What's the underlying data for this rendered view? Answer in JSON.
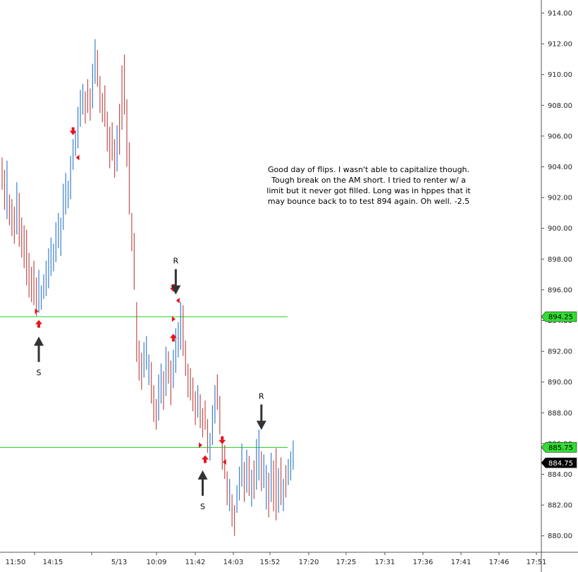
{
  "chart_data": {
    "type": "ohlc",
    "ylim": [
      879,
      915
    ],
    "y_ticks": [
      "914.00",
      "912.00",
      "910.00",
      "908.00",
      "906.00",
      "904.00",
      "902.00",
      "900.00",
      "898.00",
      "896.00",
      "894.00",
      "892.00",
      "890.00",
      "888.00",
      "886.00",
      "884.00",
      "882.00",
      "880.00"
    ],
    "x_ticks": [
      "11:50",
      "14:15",
      "5/13",
      "10:09",
      "11:42",
      "14:03",
      "15:52",
      "17:20",
      "17:25",
      "17:31",
      "17:36",
      "17:41",
      "17:46",
      "17:51"
    ],
    "horizontal_lines": [
      {
        "value": 894.25,
        "label": "894.25",
        "color": "#22cc22"
      },
      {
        "value": 885.75,
        "label": "885.75",
        "color": "#22cc22"
      }
    ],
    "last_price": {
      "value": 884.75,
      "label": "884.75"
    },
    "up_color": "#3a7fd0",
    "down_color": "#c0504d",
    "bars": [
      {
        "h": 904.6,
        "l": 902.5,
        "d": "down"
      },
      {
        "h": 903.8,
        "l": 901.2,
        "d": "down"
      },
      {
        "h": 904.4,
        "l": 900.6,
        "d": "up"
      },
      {
        "h": 902.2,
        "l": 900.2,
        "d": "down"
      },
      {
        "h": 901.9,
        "l": 899.5,
        "d": "down"
      },
      {
        "h": 901.4,
        "l": 899.0,
        "d": "down"
      },
      {
        "h": 903.0,
        "l": 899.6,
        "d": "up"
      },
      {
        "h": 902.3,
        "l": 898.8,
        "d": "down"
      },
      {
        "h": 900.7,
        "l": 898.1,
        "d": "down"
      },
      {
        "h": 900.2,
        "l": 897.4,
        "d": "down"
      },
      {
        "h": 899.9,
        "l": 896.3,
        "d": "down"
      },
      {
        "h": 898.4,
        "l": 895.5,
        "d": "down"
      },
      {
        "h": 897.5,
        "l": 895.2,
        "d": "down"
      },
      {
        "h": 897.9,
        "l": 895.0,
        "d": "down"
      },
      {
        "h": 896.8,
        "l": 894.3,
        "d": "down"
      },
      {
        "h": 897.3,
        "l": 894.5,
        "d": "up"
      },
      {
        "h": 896.3,
        "l": 894.7,
        "d": "up"
      },
      {
        "h": 897.0,
        "l": 895.4,
        "d": "up"
      },
      {
        "h": 897.9,
        "l": 895.6,
        "d": "up"
      },
      {
        "h": 898.7,
        "l": 896.1,
        "d": "up"
      },
      {
        "h": 899.4,
        "l": 896.9,
        "d": "up"
      },
      {
        "h": 899.0,
        "l": 897.2,
        "d": "up"
      },
      {
        "h": 900.4,
        "l": 897.8,
        "d": "up"
      },
      {
        "h": 901.0,
        "l": 898.7,
        "d": "up"
      },
      {
        "h": 900.7,
        "l": 898.2,
        "d": "up"
      },
      {
        "h": 902.9,
        "l": 899.9,
        "d": "up"
      },
      {
        "h": 903.6,
        "l": 900.9,
        "d": "up"
      },
      {
        "h": 903.1,
        "l": 901.3,
        "d": "up"
      },
      {
        "h": 904.7,
        "l": 901.9,
        "d": "up"
      },
      {
        "h": 905.8,
        "l": 903.8,
        "d": "up"
      },
      {
        "h": 906.3,
        "l": 904.7,
        "d": "up"
      },
      {
        "h": 907.9,
        "l": 905.2,
        "d": "up"
      },
      {
        "h": 909.0,
        "l": 906.6,
        "d": "up"
      },
      {
        "h": 909.4,
        "l": 907.4,
        "d": "up"
      },
      {
        "h": 908.9,
        "l": 906.8,
        "d": "down"
      },
      {
        "h": 909.7,
        "l": 907.5,
        "d": "down"
      },
      {
        "h": 909.1,
        "l": 907.0,
        "d": "down"
      },
      {
        "h": 910.7,
        "l": 907.8,
        "d": "up"
      },
      {
        "h": 912.3,
        "l": 909.4,
        "d": "up"
      },
      {
        "h": 911.6,
        "l": 909.2,
        "d": "down"
      },
      {
        "h": 909.9,
        "l": 907.5,
        "d": "down"
      },
      {
        "h": 908.8,
        "l": 906.9,
        "d": "down"
      },
      {
        "h": 909.3,
        "l": 906.6,
        "d": "down"
      },
      {
        "h": 907.6,
        "l": 905.0,
        "d": "down"
      },
      {
        "h": 906.6,
        "l": 903.9,
        "d": "down"
      },
      {
        "h": 906.9,
        "l": 904.4,
        "d": "down"
      },
      {
        "h": 905.8,
        "l": 903.3,
        "d": "down"
      },
      {
        "h": 906.7,
        "l": 903.7,
        "d": "up"
      },
      {
        "h": 908.1,
        "l": 904.8,
        "d": "down"
      },
      {
        "h": 910.6,
        "l": 906.4,
        "d": "down"
      },
      {
        "h": 911.3,
        "l": 907.4,
        "d": "down"
      },
      {
        "h": 908.4,
        "l": 904.0,
        "d": "down"
      },
      {
        "h": 905.6,
        "l": 900.9,
        "d": "down"
      },
      {
        "h": 901.0,
        "l": 898.5,
        "d": "down"
      },
      {
        "h": 899.7,
        "l": 896.0,
        "d": "down"
      },
      {
        "h": 895.2,
        "l": 891.3,
        "d": "down"
      },
      {
        "h": 892.7,
        "l": 890.1,
        "d": "down"
      },
      {
        "h": 891.9,
        "l": 889.5,
        "d": "down"
      },
      {
        "h": 892.6,
        "l": 890.3,
        "d": "up"
      },
      {
        "h": 893.0,
        "l": 890.8,
        "d": "up"
      },
      {
        "h": 891.8,
        "l": 889.8,
        "d": "up"
      },
      {
        "h": 891.3,
        "l": 888.6,
        "d": "down"
      },
      {
        "h": 889.8,
        "l": 887.4,
        "d": "down"
      },
      {
        "h": 888.9,
        "l": 886.9,
        "d": "down"
      },
      {
        "h": 890.5,
        "l": 887.5,
        "d": "up"
      },
      {
        "h": 891.2,
        "l": 888.6,
        "d": "up"
      },
      {
        "h": 890.7,
        "l": 888.2,
        "d": "down"
      },
      {
        "h": 892.3,
        "l": 889.1,
        "d": "up"
      },
      {
        "h": 892.0,
        "l": 889.9,
        "d": "down"
      },
      {
        "h": 891.4,
        "l": 888.5,
        "d": "down"
      },
      {
        "h": 892.1,
        "l": 889.6,
        "d": "up"
      },
      {
        "h": 893.5,
        "l": 890.6,
        "d": "up"
      },
      {
        "h": 893.9,
        "l": 891.6,
        "d": "up"
      },
      {
        "h": 895.2,
        "l": 892.1,
        "d": "up"
      },
      {
        "h": 895.0,
        "l": 891.7,
        "d": "down"
      },
      {
        "h": 892.7,
        "l": 890.4,
        "d": "down"
      },
      {
        "h": 891.2,
        "l": 889.0,
        "d": "down"
      },
      {
        "h": 890.9,
        "l": 888.8,
        "d": "down"
      },
      {
        "h": 890.3,
        "l": 888.1,
        "d": "down"
      },
      {
        "h": 889.4,
        "l": 887.2,
        "d": "down"
      },
      {
        "h": 889.8,
        "l": 887.7,
        "d": "up"
      },
      {
        "h": 889.2,
        "l": 887.0,
        "d": "down"
      },
      {
        "h": 888.3,
        "l": 886.4,
        "d": "down"
      },
      {
        "h": 888.8,
        "l": 886.9,
        "d": "down"
      },
      {
        "h": 887.6,
        "l": 885.4,
        "d": "down"
      },
      {
        "h": 886.7,
        "l": 884.9,
        "d": "up"
      },
      {
        "h": 888.5,
        "l": 885.9,
        "d": "up"
      },
      {
        "h": 889.8,
        "l": 887.3,
        "d": "up"
      },
      {
        "h": 890.5,
        "l": 888.2,
        "d": "down"
      },
      {
        "h": 889.1,
        "l": 886.6,
        "d": "down"
      },
      {
        "h": 886.5,
        "l": 884.3,
        "d": "down"
      },
      {
        "h": 885.9,
        "l": 883.7,
        "d": "down"
      },
      {
        "h": 884.2,
        "l": 882.0,
        "d": "down"
      },
      {
        "h": 883.7,
        "l": 881.6,
        "d": "up"
      },
      {
        "h": 882.7,
        "l": 880.6,
        "d": "down"
      },
      {
        "h": 882.0,
        "l": 880.0,
        "d": "down"
      },
      {
        "h": 883.3,
        "l": 881.5,
        "d": "up"
      },
      {
        "h": 884.5,
        "l": 882.3,
        "d": "up"
      },
      {
        "h": 886.0,
        "l": 883.2,
        "d": "up"
      },
      {
        "h": 884.8,
        "l": 882.2,
        "d": "down"
      },
      {
        "h": 885.6,
        "l": 882.8,
        "d": "up"
      },
      {
        "h": 885.2,
        "l": 882.6,
        "d": "down"
      },
      {
        "h": 884.3,
        "l": 881.9,
        "d": "up"
      },
      {
        "h": 884.9,
        "l": 882.4,
        "d": "down"
      },
      {
        "h": 886.3,
        "l": 883.0,
        "d": "up"
      },
      {
        "h": 886.9,
        "l": 883.6,
        "d": "up"
      },
      {
        "h": 885.5,
        "l": 882.9,
        "d": "down"
      },
      {
        "h": 885.3,
        "l": 883.1,
        "d": "up"
      },
      {
        "h": 884.6,
        "l": 881.7,
        "d": "up"
      },
      {
        "h": 884.1,
        "l": 881.2,
        "d": "down"
      },
      {
        "h": 885.4,
        "l": 882.2,
        "d": "up"
      },
      {
        "h": 884.9,
        "l": 881.6,
        "d": "down"
      },
      {
        "h": 885.7,
        "l": 881.0,
        "d": "down"
      },
      {
        "h": 884.4,
        "l": 881.5,
        "d": "up"
      },
      {
        "h": 885.1,
        "l": 882.0,
        "d": "down"
      },
      {
        "h": 883.7,
        "l": 881.6,
        "d": "up"
      },
      {
        "h": 884.6,
        "l": 882.5,
        "d": "down"
      },
      {
        "h": 885.0,
        "l": 883.3,
        "d": "up"
      },
      {
        "h": 885.5,
        "l": 883.6,
        "d": "up"
      },
      {
        "h": 886.2,
        "l": 884.3,
        "d": "up"
      }
    ],
    "annotations": [
      {
        "label": "S",
        "bar": 15,
        "value": 893.6,
        "dir": "up"
      },
      {
        "label": "R",
        "bar": 71,
        "value": 895.6,
        "dir": "down"
      },
      {
        "label": "S",
        "bar": 82,
        "value": 884.9,
        "dir": "up"
      },
      {
        "label": "R",
        "bar": 106,
        "value": 886.8,
        "dir": "down"
      }
    ],
    "signals": [
      {
        "type": "down-arrow",
        "bar": 29,
        "value": 906.2
      },
      {
        "type": "left-tri",
        "bar": 31,
        "value": 904.6
      },
      {
        "type": "right-tri",
        "bar": 14,
        "value": 894.6
      },
      {
        "type": "up-arrow",
        "bar": 15,
        "value": 893.9
      },
      {
        "type": "down-arrow",
        "bar": 70,
        "value": 896.0
      },
      {
        "type": "left-tri",
        "bar": 72,
        "value": 895.3
      },
      {
        "type": "right-tri",
        "bar": 70,
        "value": 894.1
      },
      {
        "type": "up-arrow",
        "bar": 70,
        "value": 893.0
      },
      {
        "type": "right-tri",
        "bar": 81,
        "value": 885.9
      },
      {
        "type": "up-arrow",
        "bar": 83,
        "value": 885.1
      },
      {
        "type": "down-arrow",
        "bar": 90,
        "value": 886.1
      },
      {
        "type": "left-tri",
        "bar": 91,
        "value": 884.8
      }
    ],
    "note": "Good day of flips. I wasn't able to capitalize though. Tough break on the AM short. I tried to renter w/ a limit but it never got filled. Long was in hppes that it may bounce back to to test 894 again. Oh well. -2.5"
  }
}
